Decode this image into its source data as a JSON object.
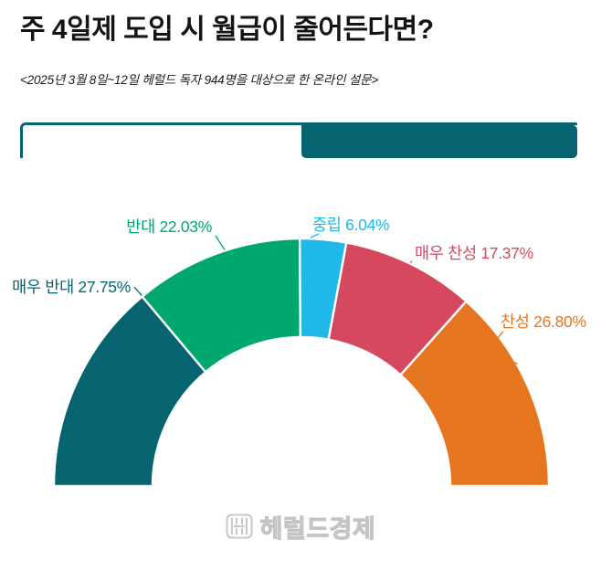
{
  "header": {
    "title": "주 4일제 도입 시 월급이 줄어든다면?",
    "subtitle": "<2025년 3월 8일~12일 헤럴드 독자 944명을 대상으로 한 온라인 설문>"
  },
  "progress_bar": {
    "fill_percent": 49.8,
    "track_color": "#ffffff",
    "fill_color": "#05646F"
  },
  "chart_data": {
    "type": "pie",
    "variant": "semicircle-donut",
    "unit": "%",
    "start_angle_deg": -90,
    "end_angle_deg": 90,
    "inner_radius_ratio": 0.6,
    "label_format": "{label} {value}%",
    "segments": [
      {
        "label": "매우 반대",
        "value": 27.75,
        "color": "#05646F"
      },
      {
        "label": "반대",
        "value": 22.03,
        "color": "#00A76F"
      },
      {
        "label": "중립",
        "value": 6.04,
        "color": "#20B7E9"
      },
      {
        "label": "매우 찬성",
        "value": 17.37,
        "color": "#D5485E"
      },
      {
        "label": "찬성",
        "value": 26.8,
        "color": "#E5761F"
      }
    ]
  },
  "footer": {
    "logo_text": "헤럴드경제"
  }
}
